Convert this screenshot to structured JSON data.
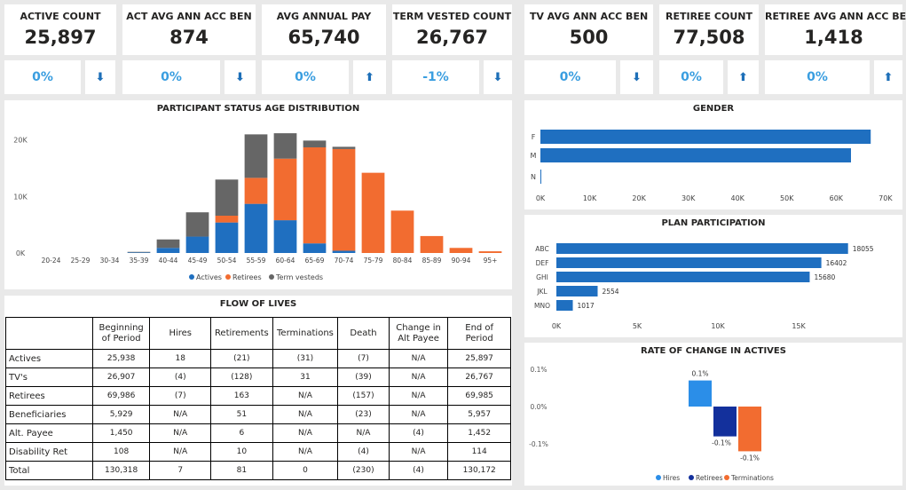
{
  "kpis": [
    {
      "title": "ACTIVE COUNT",
      "value": "25,897",
      "pct": "0%",
      "arrow": "⬇"
    },
    {
      "title": "ACT AVG ANN ACC BEN",
      "value": "874",
      "pct": "0%",
      "arrow": "⬇"
    },
    {
      "title": "AVG ANNUAL PAY",
      "value": "65,740",
      "pct": "0%",
      "arrow": "⬆"
    },
    {
      "title": "TERM VESTED COUNT",
      "value": "26,767",
      "pct": "-1%",
      "arrow": "⬇"
    },
    {
      "title": "TV AVG ANN ACC BEN",
      "value": "500",
      "pct": "0%",
      "arrow": "⬇"
    },
    {
      "title": "RETIREE COUNT",
      "value": "77,508",
      "pct": "0%",
      "arrow": "⬆"
    },
    {
      "title": "RETIREE AVG ANN ACC BEN",
      "value": "1,418",
      "pct": "0%",
      "arrow": "⬆"
    }
  ],
  "colors": {
    "actives": "#1f6fc0",
    "retirees": "#f26c30",
    "term": "#666666",
    "hires": "#2b8ee8",
    "retirees_dark": "#13309c",
    "bar_blue": "#1f6fc0"
  },
  "chart_data": [
    {
      "id": "age",
      "type": "bar",
      "stacked": true,
      "title": "PARTICIPANT STATUS AGE DISTRIBUTION",
      "categories": [
        "20-24",
        "25-29",
        "30-34",
        "35-39",
        "40-44",
        "45-49",
        "50-54",
        "55-59",
        "60-64",
        "65-69",
        "70-74",
        "75-79",
        "80-84",
        "85-89",
        "90-94",
        "95+"
      ],
      "series": [
        {
          "name": "Actives",
          "values": [
            0,
            0,
            0,
            100,
            900,
            2900,
            5400,
            8700,
            5800,
            1700,
            400,
            0,
            0,
            0,
            0,
            0
          ]
        },
        {
          "name": "Retirees",
          "values": [
            0,
            0,
            0,
            0,
            0,
            0,
            1200,
            4600,
            10900,
            17000,
            18000,
            14200,
            7500,
            3000,
            900,
            300
          ]
        },
        {
          "name": "Term vesteds",
          "values": [
            0,
            0,
            0,
            100,
            1500,
            4300,
            6400,
            7700,
            4500,
            1200,
            400,
            0,
            0,
            0,
            0,
            0
          ]
        }
      ],
      "yticks": [
        "0K",
        "10K",
        "20K"
      ],
      "ylim": [
        0,
        22000
      ],
      "legend": "bottom"
    },
    {
      "id": "gender",
      "type": "bar",
      "orientation": "horizontal",
      "title": "GENDER",
      "categories": [
        "F",
        "M",
        "N"
      ],
      "values": [
        67000,
        63000,
        0
      ],
      "xticks": [
        "0K",
        "10K",
        "20K",
        "30K",
        "40K",
        "50K",
        "60K",
        "70K"
      ],
      "xlim": [
        0,
        72000
      ]
    },
    {
      "id": "plan",
      "type": "bar",
      "orientation": "horizontal",
      "title": "PLAN PARTICIPATION",
      "categories": [
        "ABC",
        "DEF",
        "GHI",
        "JKL",
        "MNO"
      ],
      "values": [
        18055,
        16402,
        15680,
        2554,
        1017
      ],
      "labels": [
        "18055",
        "16402",
        "15680",
        "2554",
        "1017"
      ],
      "xticks": [
        "0K",
        "5K",
        "10K",
        "15K"
      ],
      "xlim": [
        0,
        19500
      ]
    },
    {
      "id": "rate",
      "type": "bar",
      "title": "RATE OF CHANGE IN ACTIVES",
      "categories": [
        "Hires",
        "Retirees",
        "Terminations"
      ],
      "values": [
        0.07,
        -0.08,
        -0.12
      ],
      "labels": [
        "0.1%",
        "-0.1%",
        "-0.1%"
      ],
      "yticks": [
        "0.1%",
        "0.0%",
        "-0.1%"
      ],
      "ylim": [
        -0.15,
        0.15
      ],
      "legend": "bottom"
    }
  ],
  "flow": {
    "title": "FLOW OF LIVES",
    "headers": [
      "",
      "Beginning of Period",
      "Hires",
      "Retirements",
      "Terminations",
      "Death",
      "Change in Alt Payee",
      "End of Period"
    ],
    "rows": [
      [
        "Actives",
        "25,938",
        "18",
        "(21)",
        "(31)",
        "(7)",
        "N/A",
        "25,897"
      ],
      [
        "TV's",
        "26,907",
        "(4)",
        "(128)",
        "31",
        "(39)",
        "N/A",
        "26,767"
      ],
      [
        "Retirees",
        "69,986",
        "(7)",
        "163",
        "N/A",
        "(157)",
        "N/A",
        "69,985"
      ],
      [
        "Beneficiaries",
        "5,929",
        "N/A",
        "51",
        "N/A",
        "(23)",
        "N/A",
        "5,957"
      ],
      [
        "Alt. Payee",
        "1,450",
        "N/A",
        "6",
        "N/A",
        "N/A",
        "(4)",
        "1,452"
      ],
      [
        "Disability Ret",
        "108",
        "N/A",
        "10",
        "N/A",
        "(4)",
        "N/A",
        "114"
      ],
      [
        "Total",
        "130,318",
        "7",
        "81",
        "0",
        "(230)",
        "(4)",
        "130,172"
      ]
    ]
  }
}
